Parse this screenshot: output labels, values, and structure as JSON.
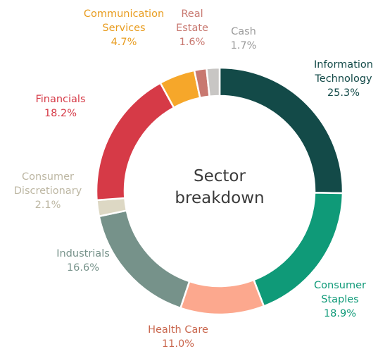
{
  "chart_data": {
    "type": "pie",
    "title": "Sector breakdown",
    "categories": [
      "Information Technology",
      "Consumer Staples",
      "Health Care",
      "Industrials",
      "Consumer Discretionary",
      "Financials",
      "Communication Services",
      "Real Estate",
      "Cash"
    ],
    "values": [
      25.3,
      18.9,
      11.0,
      16.6,
      2.1,
      18.2,
      4.7,
      1.6,
      1.7
    ],
    "value_labels": [
      "25.3%",
      "18.9%",
      "11.0%",
      "16.6%",
      "2.1%",
      "18.2%",
      "4.7%",
      "1.6%",
      "1.7%"
    ],
    "colors": [
      "#134a48",
      "#0f9a78",
      "#fca88e",
      "#76928a",
      "#ddd8c4",
      "#d63a47",
      "#f6a72a",
      "#c87870",
      "#c8c6c4"
    ]
  }
}
